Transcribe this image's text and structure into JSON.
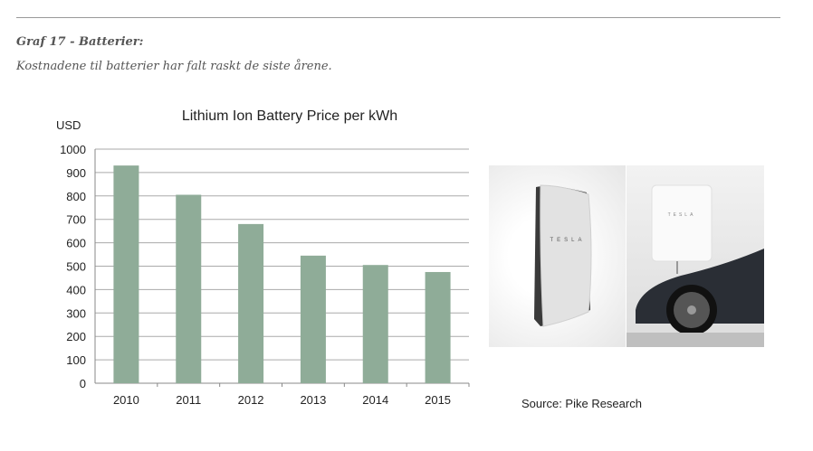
{
  "header": {
    "title": "Graf 17 - Batterier:",
    "subtitle": "Kostnadene til batterier har falt raskt de siste årene."
  },
  "chart_data": {
    "type": "bar",
    "title": "Lithium Ion Battery Price per kWh",
    "ylabel": "USD",
    "xlabel": "",
    "categories": [
      "2010",
      "2011",
      "2012",
      "2013",
      "2014",
      "2015"
    ],
    "values": [
      930,
      805,
      680,
      545,
      505,
      475
    ],
    "ylim": [
      0,
      1000
    ],
    "yticks": [
      0,
      100,
      200,
      300,
      400,
      500,
      600,
      700,
      800,
      900,
      1000
    ],
    "grid": true,
    "bar_color": "#8fac98"
  },
  "images": {
    "powerwall_logo": "TESLA",
    "powerwall_car_logo": "TESLA"
  },
  "source": "Source: Pike Research"
}
